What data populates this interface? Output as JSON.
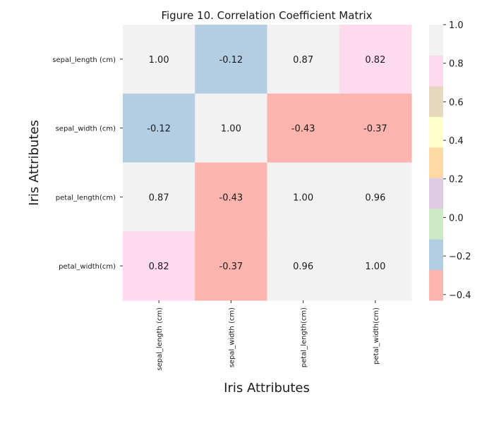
{
  "chart_data": {
    "type": "heatmap",
    "title": "Figure 10. Correlation Coefficient Matrix",
    "xlabel": "Iris Attributes",
    "ylabel": "Iris Attributes",
    "x_categories": [
      "sepal_length (cm)",
      "sepal_width (cm)",
      "petal_length(cm)",
      "petal_width(cm)"
    ],
    "y_categories": [
      "sepal_length (cm)",
      "sepal_width (cm)",
      "petal_length(cm)",
      "petal_width(cm)"
    ],
    "values": [
      [
        1.0,
        -0.12,
        0.87,
        0.82
      ],
      [
        -0.12,
        1.0,
        -0.43,
        -0.37
      ],
      [
        0.87,
        -0.43,
        1.0,
        0.96
      ],
      [
        0.82,
        -0.37,
        0.96,
        1.0
      ]
    ],
    "value_format": "0.00",
    "colorbar": {
      "range": [
        -0.43,
        1.0
      ],
      "ticks": [
        -0.4,
        -0.2,
        0.0,
        0.2,
        0.4,
        0.6,
        0.8,
        1.0
      ],
      "palette_name": "Pastel1",
      "colors": [
        "#fbb4ae",
        "#b3cde3",
        "#ccebc5",
        "#decbe4",
        "#fed9a6",
        "#ffffcc",
        "#e5d8bd",
        "#fddaec",
        "#f2f2f2"
      ]
    }
  }
}
